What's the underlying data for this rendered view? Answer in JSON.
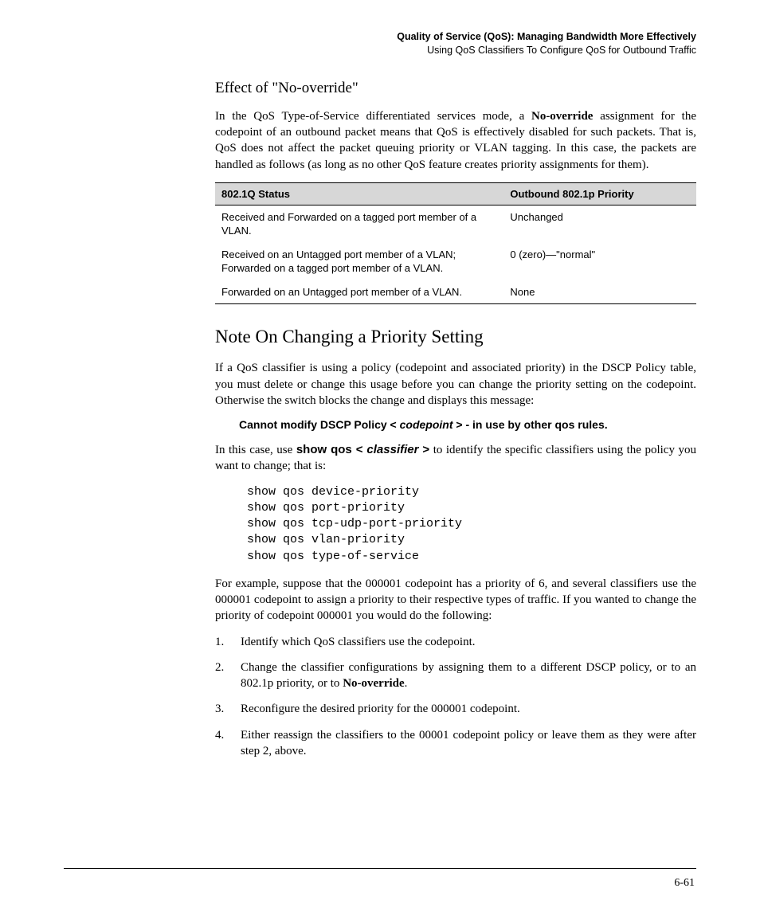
{
  "header": {
    "title": "Quality of Service (QoS): Managing Bandwidth More Effectively",
    "subtitle": "Using QoS Classifiers To Configure QoS for Outbound Traffic"
  },
  "section1": {
    "heading": "Effect of \"No-override\"",
    "p1_a": "In the QoS Type-of-Service differentiated services mode, a ",
    "p1_bold": "No-override",
    "p1_b": " assignment for the codepoint of an outbound packet means that QoS is effectively disabled for such packets. That is, QoS does not affect the packet queuing priority or VLAN tagging. In this case, the packets are handled as follows (as long as no other QoS feature creates priority assignments for them)."
  },
  "table": {
    "col1_header": "802.1Q Status",
    "col2_header": "Outbound 802.1p Priority",
    "rows": [
      {
        "status": "Received and Forwarded on a tagged port member of a VLAN.",
        "priority": "Unchanged"
      },
      {
        "status": "Received on an Untagged port member of a VLAN; Forwarded on a tagged port member of a VLAN.",
        "priority": "0 (zero)—\"normal\""
      },
      {
        "status": "Forwarded on an Untagged port member of a VLAN.",
        "priority": "None"
      }
    ]
  },
  "section2": {
    "heading": "Note On Changing a Priority Setting",
    "p1": "If a QoS classifier is using a policy (codepoint and associated priority) in the DSCP Policy table, you must delete or change this usage before you can change the priority setting on the codepoint. Otherwise the switch blocks the change and displays this message:",
    "errmsg_a": "Cannot modify DSCP Policy < ",
    "errmsg_italic": "codepoint",
    "errmsg_b": " > - in use by other qos rules.",
    "p2_a": "In this case, use ",
    "p2_bold1": "show qos < ",
    "p2_italic": "classifier",
    "p2_bold2": " >",
    "p2_b": " to identify the specific classifiers using the policy you want to change; that is:",
    "code": "show qos device-priority\nshow qos port-priority\nshow qos tcp-udp-port-priority\nshow qos vlan-priority\nshow qos type-of-service",
    "p3": "For example, suppose that the 000001 codepoint has a priority of 6, and several classifiers use the 000001 codepoint to assign a priority to their respective types of traffic. If you wanted to change the priority of codepoint 000001 you would do the following:",
    "steps": [
      {
        "a": "Identify which QoS classifiers use the codepoint.",
        "bold": "",
        "b": ""
      },
      {
        "a": "Change the classifier configurations by assigning them to a different DSCP policy, or to an 802.1p priority, or to ",
        "bold": "No-override",
        "b": "."
      },
      {
        "a": "Reconfigure the desired priority for the 000001 codepoint.",
        "bold": "",
        "b": ""
      },
      {
        "a": "Either reassign the classifiers to the 00001 codepoint policy or leave them as they were after step 2, above.",
        "bold": "",
        "b": ""
      }
    ]
  },
  "pagenum": "6-61"
}
